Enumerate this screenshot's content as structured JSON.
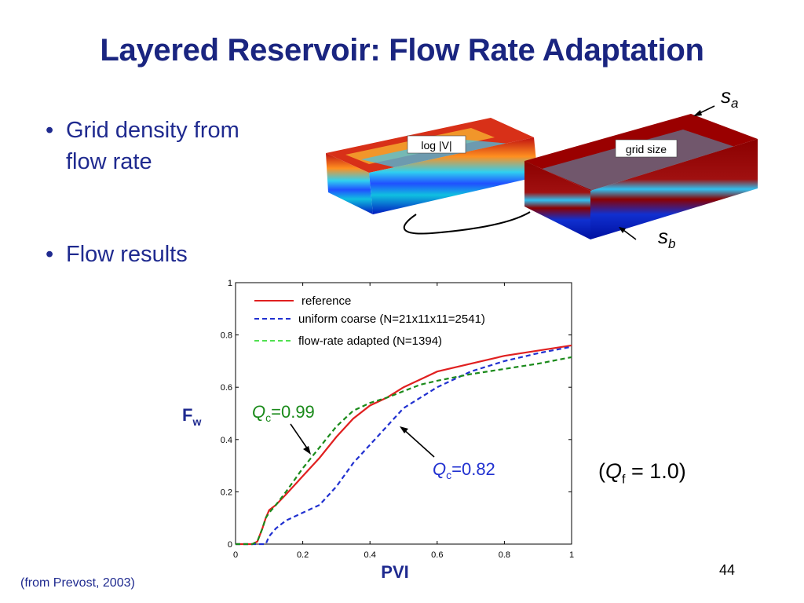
{
  "slide": {
    "title": "Layered Reservoir: Flow Rate Adaptation",
    "bullets": [
      "Grid density from",
      "flow rate",
      "Flow results"
    ],
    "credit": "(from Prevost,  2003)",
    "page_number": "44",
    "qf": {
      "open": "(",
      "q": "Q",
      "sub": "f",
      "rest": " = 1.0)"
    }
  },
  "images": {
    "left_label": "log |V|",
    "right_label": "grid size",
    "sa": {
      "base": "s",
      "sub": "a"
    },
    "sb": {
      "base": "s",
      "sub": "b"
    }
  },
  "chart_data": {
    "type": "line",
    "xlabel": "PVI",
    "ylabel": {
      "base": "F",
      "sub": "w"
    },
    "xlim": [
      0,
      1
    ],
    "ylim": [
      0,
      1
    ],
    "xticks": [
      "0",
      "0.2",
      "0.4",
      "0.6",
      "0.8",
      "1"
    ],
    "yticks": [
      "0",
      "0.2",
      "0.4",
      "0.6",
      "0.8",
      "1"
    ],
    "grid": false,
    "legend_position": "top-left",
    "series": [
      {
        "name": "reference",
        "color": "#e02020",
        "dash": "solid",
        "x": [
          0,
          0.05,
          0.065,
          0.08,
          0.09,
          0.1,
          0.12,
          0.15,
          0.2,
          0.25,
          0.3,
          0.35,
          0.4,
          0.45,
          0.5,
          0.55,
          0.6,
          0.7,
          0.8,
          0.9,
          1.0
        ],
        "y": [
          0,
          0.0,
          0.01,
          0.06,
          0.1,
          0.13,
          0.15,
          0.19,
          0.26,
          0.33,
          0.41,
          0.48,
          0.53,
          0.56,
          0.6,
          0.63,
          0.66,
          0.69,
          0.72,
          0.74,
          0.76
        ]
      },
      {
        "name": "uniform coarse (N=21x11x11=2541)",
        "color": "#2030d0",
        "dash": "6,4",
        "x": [
          0,
          0.05,
          0.09,
          0.1,
          0.12,
          0.15,
          0.2,
          0.25,
          0.3,
          0.35,
          0.4,
          0.45,
          0.5,
          0.55,
          0.6,
          0.7,
          0.8,
          0.9,
          1.0
        ],
        "y": [
          0,
          0.0,
          0.0,
          0.03,
          0.06,
          0.09,
          0.12,
          0.15,
          0.22,
          0.31,
          0.38,
          0.45,
          0.52,
          0.56,
          0.6,
          0.66,
          0.7,
          0.73,
          0.755
        ]
      },
      {
        "name": "flow-rate adapted (N=1394)",
        "color": "#1a8a1a",
        "dash": "6,4",
        "x": [
          0,
          0.05,
          0.065,
          0.08,
          0.09,
          0.1,
          0.12,
          0.15,
          0.2,
          0.25,
          0.3,
          0.35,
          0.4,
          0.45,
          0.5,
          0.55,
          0.6,
          0.7,
          0.8,
          0.9,
          1.0
        ],
        "y": [
          0,
          0.0,
          0.01,
          0.06,
          0.1,
          0.12,
          0.15,
          0.2,
          0.29,
          0.37,
          0.45,
          0.51,
          0.54,
          0.56,
          0.585,
          0.61,
          0.625,
          0.65,
          0.67,
          0.69,
          0.715
        ]
      }
    ],
    "annotations": [
      {
        "q": "Q",
        "sub": "c",
        "text": "=0.99",
        "color": "#1a8a1a"
      },
      {
        "q": "Q",
        "sub": "c",
        "text": "=0.82",
        "color": "#2030d0"
      }
    ]
  }
}
